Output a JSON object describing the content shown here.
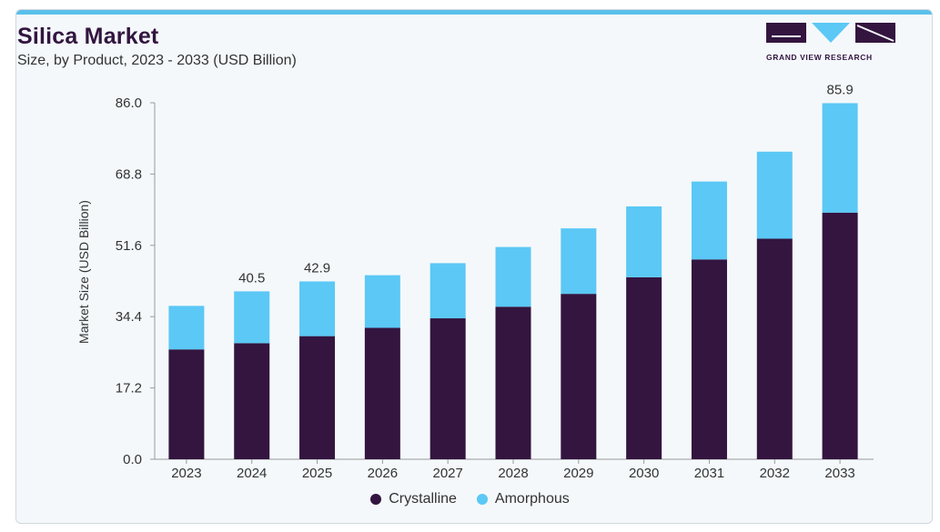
{
  "header": {
    "title": "Silica Market",
    "subtitle": "Size, by Product, 2023 - 2033 (USD Billion)"
  },
  "brand": {
    "name": "GRAND VIEW RESEARCH"
  },
  "colors": {
    "crystalline": "#331540",
    "amorphous": "#5bc8f5",
    "accent": "#5bc0eb"
  },
  "chart_data": {
    "type": "bar",
    "stacked": true,
    "title": "Silica Market",
    "subtitle": "Size, by Product, 2023 - 2033 (USD Billion)",
    "xlabel": "",
    "ylabel": "Market Size (USD Billion)",
    "ylim": [
      0,
      86.0
    ],
    "yticks": [
      "0.0",
      "17.2",
      "34.4",
      "51.6",
      "68.8",
      "86.0"
    ],
    "categories": [
      "2023",
      "2024",
      "2025",
      "2026",
      "2027",
      "2028",
      "2029",
      "2030",
      "2031",
      "2032",
      "2033"
    ],
    "series": [
      {
        "name": "Crystalline",
        "values": [
          26.5,
          28.0,
          29.7,
          31.7,
          34.0,
          36.8,
          39.9,
          43.9,
          48.2,
          53.2,
          59.5
        ]
      },
      {
        "name": "Amorphous",
        "values": [
          10.5,
          12.5,
          13.2,
          12.7,
          13.3,
          14.4,
          15.8,
          17.1,
          18.8,
          21.0,
          26.4
        ]
      }
    ],
    "totals_labels": [
      {
        "category": "2024",
        "label": "40.5"
      },
      {
        "category": "2025",
        "label": "42.9"
      },
      {
        "category": "2033",
        "label": "85.9"
      }
    ],
    "legend_position": "bottom",
    "grid": false
  }
}
